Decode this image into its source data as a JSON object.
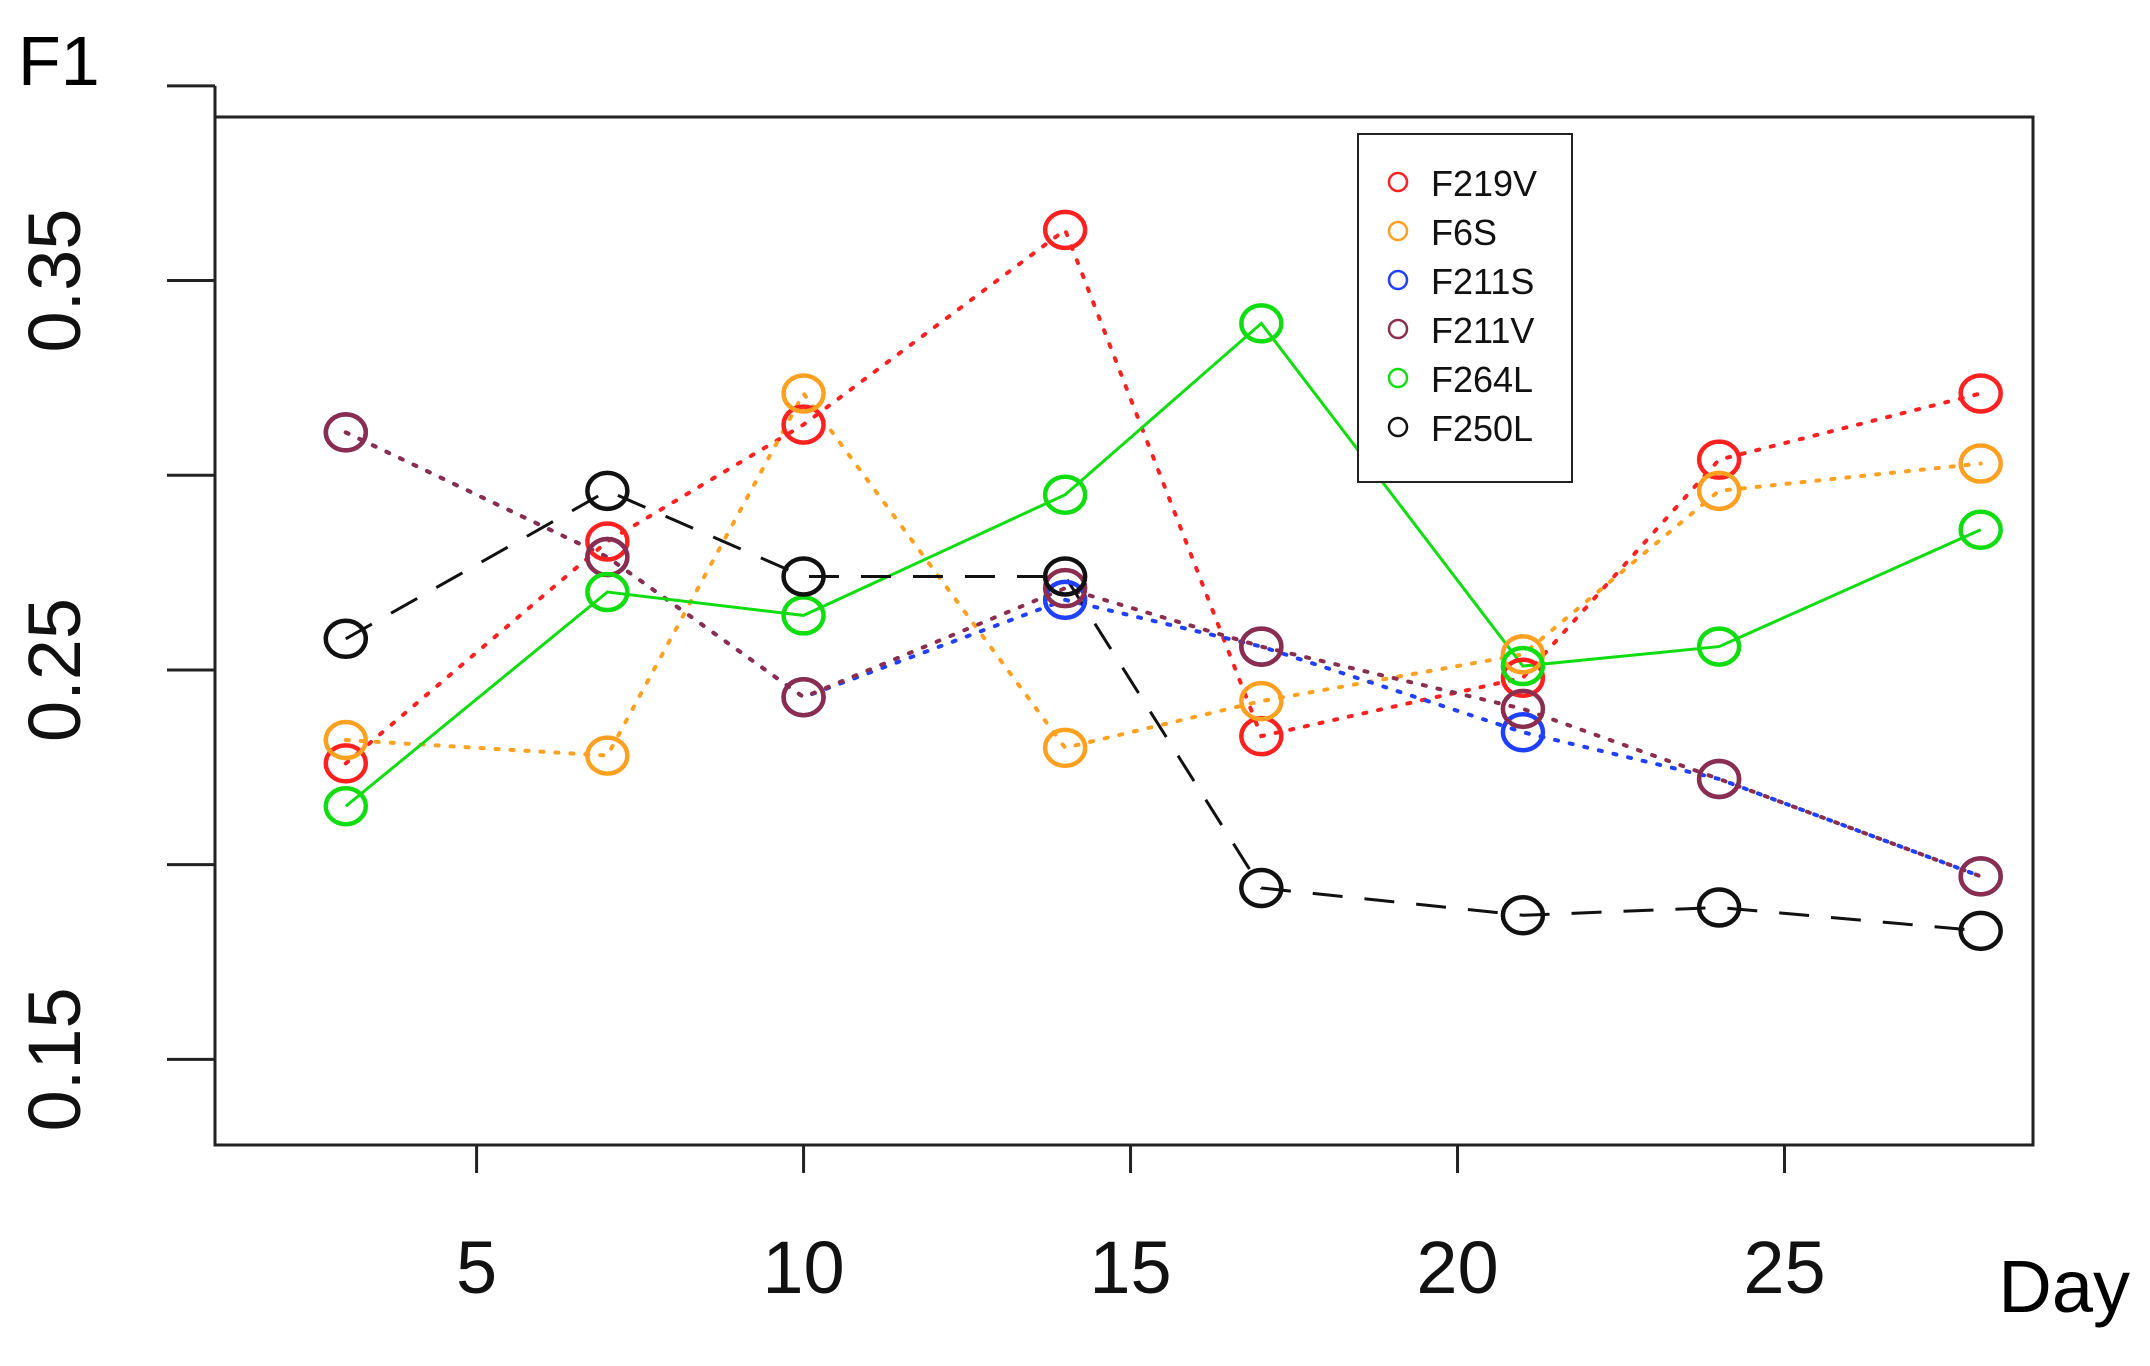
{
  "chart_data": {
    "type": "scatter",
    "title": "F1",
    "xlabel": "Day",
    "ylabel": "",
    "xlim": [
      1.0,
      28.8
    ],
    "ylim": [
      0.128,
      0.392
    ],
    "xticks": [
      5,
      10,
      15,
      20,
      25
    ],
    "yticks": [
      0.15,
      0.25,
      0.35
    ],
    "ytick_labels": [
      "0.15",
      "0.25",
      "0.35"
    ],
    "yticks_unlabeled": [
      0.2,
      0.3,
      0.4
    ],
    "x": [
      3,
      7,
      10,
      14,
      17,
      21,
      24,
      28
    ],
    "legend": {
      "position": "top-right",
      "entries": [
        "F219V",
        "F6S",
        "F211S",
        "F211V",
        "F264L",
        "F250L"
      ]
    },
    "series": [
      {
        "name": "F219V",
        "color": "#ff2020",
        "line": "dotted",
        "values": [
          0.226,
          0.283,
          0.313,
          0.363,
          0.233,
          0.248,
          0.304,
          0.321
        ]
      },
      {
        "name": "F6S",
        "color": "#ffa020",
        "line": "dotted",
        "values": [
          0.232,
          0.228,
          0.321,
          0.23,
          0.242,
          0.254,
          0.296,
          0.303
        ]
      },
      {
        "name": "F211S",
        "color": "#2040ff",
        "line": "dotted",
        "values": [
          0.311,
          0.279,
          0.243,
          0.268,
          0.256,
          0.234,
          0.222,
          0.197
        ]
      },
      {
        "name": "F211V",
        "color": "#8b2d4e",
        "line": "dotted",
        "values": [
          0.311,
          0.279,
          0.243,
          0.271,
          0.256,
          0.24,
          0.222,
          0.197
        ]
      },
      {
        "name": "F264L",
        "color": "#10dd10",
        "line": "solid",
        "values": [
          0.215,
          0.27,
          0.264,
          0.295,
          0.339,
          0.251,
          0.256,
          0.286
        ]
      },
      {
        "name": "F250L",
        "color": "#111111",
        "line": "dashed",
        "values": [
          0.258,
          0.296,
          0.274,
          0.274,
          0.194,
          0.187,
          0.189,
          0.183
        ]
      }
    ]
  }
}
